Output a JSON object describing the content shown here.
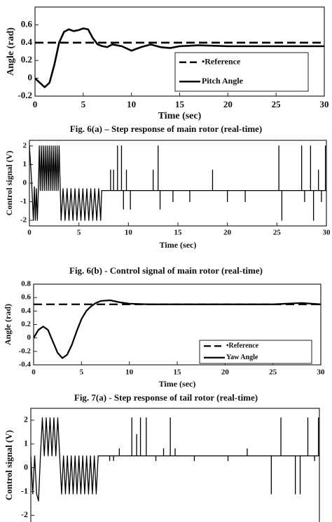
{
  "chart_data": [
    {
      "type": "line",
      "caption": "Fig. 6(a) – Step response of main rotor (real-time)",
      "xlabel": "Time (sec)",
      "ylabel": "Angle (rad)",
      "xlim": [
        0,
        30
      ],
      "xticks": [
        0,
        5,
        10,
        15,
        20,
        25,
        30
      ],
      "ylim": [
        -0.2,
        0.8
      ],
      "yticks": [
        -0.2,
        0,
        0.2,
        0.4,
        0.6
      ],
      "grid": false,
      "legend": "lower right",
      "series": [
        {
          "name": "•Reference",
          "color": "#000000",
          "dash": true,
          "x": [
            0,
            30
          ],
          "values": [
            0.4,
            0.4
          ]
        },
        {
          "name": "Pitch Angle",
          "color": "#000000",
          "dash": false,
          "x": [
            0,
            0.5,
            1,
            1.5,
            2,
            2.5,
            3,
            3.5,
            4,
            4.5,
            5,
            5.5,
            6,
            6.5,
            7,
            7.5,
            8,
            9,
            10,
            11,
            12,
            13,
            14,
            15,
            17,
            20,
            25,
            30
          ],
          "values": [
            0,
            -0.05,
            -0.1,
            -0.05,
            0.15,
            0.4,
            0.52,
            0.55,
            0.53,
            0.54,
            0.56,
            0.55,
            0.45,
            0.38,
            0.36,
            0.35,
            0.38,
            0.36,
            0.31,
            0.35,
            0.38,
            0.35,
            0.34,
            0.36,
            0.37,
            0.36,
            0.36,
            0.36
          ]
        }
      ]
    },
    {
      "type": "line",
      "caption": "Fig. 6(b) - Control signal of main rotor (real-time)",
      "xlabel": "Time (sec)",
      "ylabel": "Control signal (V)",
      "xlim": [
        0,
        30
      ],
      "xticks": [
        0,
        5,
        10,
        15,
        20,
        25,
        30
      ],
      "ylim": [
        -2.3,
        2.3
      ],
      "yticks": [
        -2,
        -1,
        0,
        1,
        2
      ],
      "grid": false,
      "series": [
        {
          "name": null,
          "color": "#000000",
          "dash": false,
          "x": [
            0,
            0.2,
            0.4,
            0.5,
            0.6,
            0.7,
            0.8,
            0.9,
            1,
            1.1,
            1.2,
            1.3,
            1.4,
            1.5,
            1.6,
            1.7,
            1.8,
            1.9,
            2,
            2.1,
            2.2,
            2.3,
            2.4,
            2.5,
            2.6,
            2.7,
            2.8,
            2.9,
            3,
            3.2,
            3.4,
            3.6,
            3.8,
            4,
            4.2,
            4.4,
            4.6,
            4.8,
            5,
            5.2,
            5.4,
            5.6,
            5.8,
            6,
            6.2,
            6.4,
            6.6,
            6.8,
            7,
            7.2,
            7.3,
            8.2,
            8.2,
            8.2,
            8.5,
            8.5,
            8.5,
            8.9,
            8.9,
            8.9,
            9.3,
            9.3,
            9.3,
            9.5,
            9.5,
            9.5,
            9.8,
            9.8,
            9.8,
            10.2,
            10.2,
            10.2,
            12.5,
            12.5,
            12.5,
            13,
            13,
            13,
            13.2,
            13.2,
            13.2,
            14.5,
            14.5,
            14.5,
            16.2,
            16.2,
            16.2,
            18.5,
            18.5,
            18.5,
            20,
            20,
            20,
            21.8,
            21.8,
            21.8,
            25.2,
            25.2,
            25.2,
            25.5,
            25.5,
            25.5,
            27.5,
            27.5,
            27.5,
            27.8,
            27.8,
            27.8,
            28.4,
            28.4,
            28.4,
            28.7,
            28.7,
            28.7,
            29.2,
            29.2,
            29.2,
            29.5,
            29.5,
            29.5,
            29.9,
            29.9,
            29.9,
            30
          ],
          "values": [
            2,
            0.3,
            -2,
            -0.2,
            -2,
            -0.3,
            -2,
            -0.4,
            2,
            -0.4,
            2,
            -0.4,
            2,
            -0.4,
            2,
            -0.4,
            2,
            -0.4,
            2,
            -0.4,
            2,
            -0.4,
            2,
            -0.4,
            2,
            -0.4,
            2,
            -0.4,
            2,
            -2,
            -0.3,
            -2,
            -0.3,
            -2,
            -0.3,
            -2,
            -0.3,
            -2,
            -0.3,
            -2,
            -0.3,
            -2,
            -0.3,
            -2,
            -0.3,
            -2,
            -0.3,
            -2,
            -0.3,
            -2,
            -0.4,
            -0.4,
            0.7,
            -0.4,
            -0.4,
            0.7,
            -0.4,
            -0.4,
            2,
            -0.4,
            -0.4,
            2,
            -0.4,
            -0.4,
            -1.4,
            -0.4,
            -0.4,
            0.7,
            -0.4,
            -0.4,
            -1.4,
            -0.4,
            -0.4,
            0.7,
            -0.4,
            -0.4,
            2,
            -0.4,
            -0.4,
            -1.4,
            -0.4,
            -0.4,
            -1,
            -0.4,
            -0.4,
            -1,
            -0.4,
            -0.4,
            0.7,
            -0.4,
            -0.4,
            -1,
            -0.4,
            -0.4,
            -1,
            -0.4,
            -0.4,
            2,
            -0.4,
            -0.4,
            -2,
            -0.4,
            -0.4,
            2,
            -0.4,
            -0.4,
            -1,
            -0.4,
            -0.4,
            2,
            -0.4,
            -0.4,
            -2,
            -0.4,
            -0.4,
            0.7,
            -0.4,
            -0.4,
            -1,
            -0.4,
            -0.4,
            2,
            -0.4,
            -0.4
          ]
        }
      ]
    },
    {
      "type": "line",
      "caption": "Fig. 7(a) - Step response of tail rotor (real-time)",
      "xlabel": "Time (sec)",
      "ylabel": "Angle (rad)",
      "xlim": [
        0,
        30
      ],
      "xticks": [
        0,
        5,
        10,
        15,
        20,
        25,
        30
      ],
      "ylim": [
        -0.4,
        0.8
      ],
      "yticks": [
        -0.4,
        -0.2,
        0,
        0.2,
        0.4,
        0.6,
        0.8
      ],
      "grid": false,
      "legend": "lower right",
      "series": [
        {
          "name": "•Reference",
          "color": "#000000",
          "dash": true,
          "x": [
            0,
            30
          ],
          "values": [
            0.5,
            0.5
          ]
        },
        {
          "name": "Yaw Angle",
          "color": "#000000",
          "dash": false,
          "x": [
            0,
            0.5,
            1,
            1.5,
            2,
            2.5,
            3,
            3.5,
            4,
            4.5,
            5,
            5.5,
            6,
            6.5,
            7,
            8,
            9,
            10,
            12,
            15,
            20,
            25,
            28,
            30
          ],
          "values": [
            0,
            0.12,
            0.17,
            0.12,
            -0.05,
            -0.22,
            -0.3,
            -0.25,
            -0.1,
            0.1,
            0.28,
            0.4,
            0.47,
            0.52,
            0.55,
            0.56,
            0.53,
            0.51,
            0.5,
            0.5,
            0.5,
            0.5,
            0.52,
            0.5
          ]
        }
      ]
    },
    {
      "type": "line",
      "ylabel": "Control signal (V)",
      "xlim": [
        0,
        30
      ],
      "ylim": [
        -2.4,
        2.5
      ],
      "yticks": [
        -2,
        -1,
        0,
        1,
        2
      ],
      "grid": false,
      "series": [
        {
          "name": null,
          "color": "#000000",
          "dash": false,
          "x": [
            0,
            0.2,
            0.4,
            0.6,
            0.8,
            1,
            1.2,
            1.4,
            1.6,
            1.8,
            2,
            2.2,
            2.4,
            2.6,
            2.8,
            3,
            3.2,
            3.4,
            3.6,
            3.8,
            4,
            4.2,
            4.4,
            4.6,
            4.8,
            5,
            5.2,
            5.4,
            5.6,
            5.8,
            6,
            6.2,
            6.4,
            6.6,
            6.8,
            7,
            8.2,
            8.2,
            8.2,
            8.6,
            8.6,
            8.6,
            9.2,
            9.2,
            9.2,
            10.5,
            10.5,
            10.5,
            11,
            11,
            11,
            11.4,
            11.4,
            11.4,
            12,
            12,
            12,
            13,
            13,
            13,
            13.8,
            13.8,
            13.8,
            14.5,
            14.5,
            14.5,
            15,
            15,
            15,
            17,
            17,
            17,
            20.5,
            20.5,
            20.5,
            22.5,
            22.5,
            22.5,
            25,
            25,
            25,
            26,
            26,
            26,
            27.5,
            27.5,
            27.5,
            28,
            28,
            28,
            28.8,
            28.8,
            28.8,
            29.5,
            29.5,
            29.5,
            29.9,
            29.9,
            29.9,
            30
          ],
          "values": [
            0.5,
            -1.1,
            0.5,
            -1.1,
            -1.4,
            0.5,
            2.1,
            0.5,
            2.1,
            0.5,
            2.1,
            0.5,
            2.1,
            0.5,
            2.1,
            0.5,
            -1.1,
            0.5,
            -1.1,
            0.5,
            -1.1,
            0.5,
            -1.1,
            0.5,
            -1.1,
            0.5,
            -1.1,
            0.5,
            -1.1,
            0.5,
            -1.1,
            0.5,
            -1.1,
            0.5,
            -1.1,
            0.5,
            0.5,
            0.3,
            0.5,
            0.5,
            0.3,
            0.5,
            0.5,
            0.8,
            0.5,
            0.5,
            2.1,
            0.5,
            0.5,
            1.4,
            0.5,
            0.5,
            2.1,
            0.5,
            0.5,
            2.1,
            0.5,
            0.5,
            0.3,
            0.5,
            0.5,
            0.8,
            0.5,
            0.5,
            2.1,
            0.5,
            0.5,
            0.8,
            0.5,
            0.5,
            0.3,
            0.5,
            0.5,
            0.3,
            0.5,
            0.5,
            0.8,
            0.5,
            0.5,
            -1.1,
            0.5,
            0.5,
            2.1,
            0.5,
            0.5,
            -1.1,
            0.5,
            0.5,
            -1.1,
            0.5,
            0.5,
            2.1,
            0.5,
            0.5,
            0.3,
            0.5,
            0.5,
            2.1,
            0.5,
            0.5
          ]
        }
      ]
    }
  ]
}
